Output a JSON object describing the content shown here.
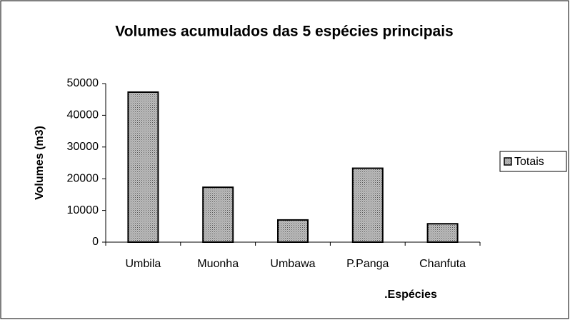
{
  "chart_data": {
    "type": "bar",
    "title": "Volumes acumulados das 5 espécies principais",
    "x_label": ".Espécies",
    "y_label": "Volumes (m3)",
    "categories": [
      "Umbila",
      "Muonha",
      "Umbawa",
      "P.Panga",
      "Chanfuta"
    ],
    "series": [
      {
        "name": "Totais",
        "color": "#c0c0c0",
        "values": [
          47300,
          17300,
          7000,
          23300,
          5800
        ]
      }
    ],
    "ylim": [
      0,
      50000
    ],
    "yticks": [
      0,
      10000,
      20000,
      30000,
      40000,
      50000
    ],
    "grid": false,
    "legend": "right"
  }
}
